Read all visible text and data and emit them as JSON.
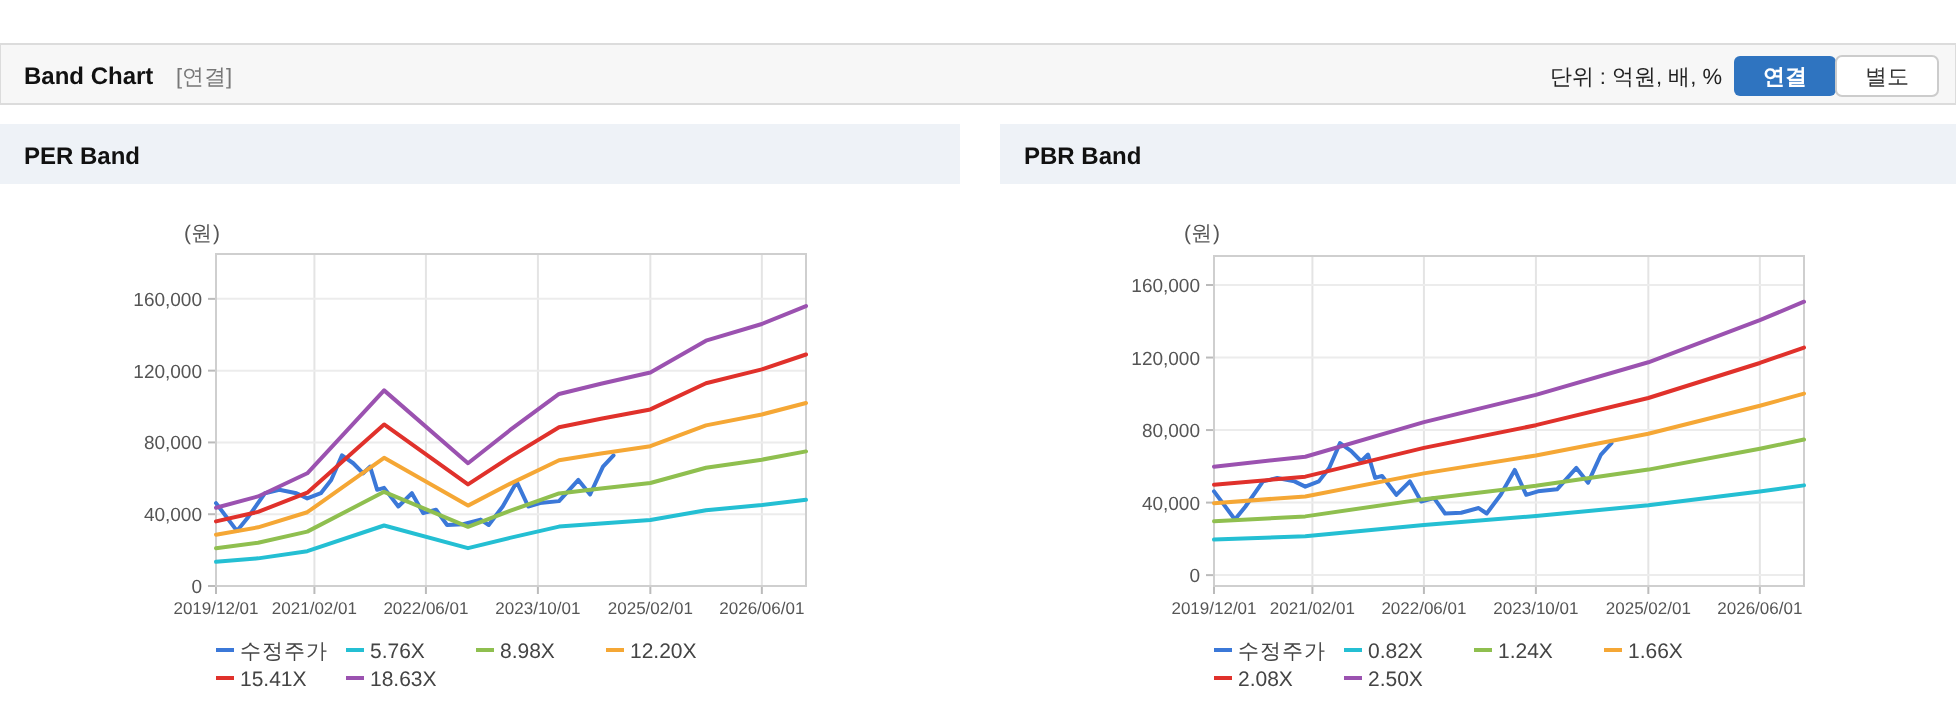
{
  "chart_data": [
    {
      "type": "other",
      "title": "Band Chart",
      "subtitle": "[연결]",
      "annotations": [
        "단위 : 억원, 배, %",
        "연결",
        "별도"
      ]
    },
    {
      "type": "line",
      "title": "PER Band",
      "ylabel": "(원)",
      "grid": true,
      "legend": "bottom",
      "marker": "none",
      "line_style": "solid",
      "xlim": [
        "2019-12-01",
        "2026-12-10"
      ],
      "ylim": [
        0,
        185000
      ],
      "xticks": [
        {
          "value": "2019-12-01",
          "label": "2019/12/01"
        },
        {
          "value": "2021-02-01",
          "label": "2021/02/01"
        },
        {
          "value": "2022-06-01",
          "label": "2022/06/01"
        },
        {
          "value": "2023-10-01",
          "label": "2023/10/01"
        },
        {
          "value": "2025-02-01",
          "label": "2025/02/01"
        },
        {
          "value": "2026-06-01",
          "label": "2026/06/01"
        }
      ],
      "yticks": [
        {
          "value": 0,
          "label": "0"
        },
        {
          "value": 40000,
          "label": "40,000"
        },
        {
          "value": 80000,
          "label": "80,000"
        },
        {
          "value": 120000,
          "label": "120,000"
        },
        {
          "value": 160000,
          "label": "160,000"
        }
      ],
      "series": [
        {
          "name": "수정주가",
          "color": "#3b78d8",
          "x": [
            "2019-12",
            "2020-03",
            "2020-04-15",
            "2020-07",
            "2020-09",
            "2020-11-15",
            "2021-01",
            "2021-03",
            "2021-04-15",
            "2021-06",
            "2021-07-20",
            "2021-09",
            "2021-10",
            "2021-11",
            "2021-12",
            "2022-02",
            "2022-04",
            "2022-05-20",
            "2022-07-15",
            "2022-09",
            "2022-11-10",
            "2023-01-25",
            "2023-03",
            "2023-05",
            "2023-07",
            "2023-08-20",
            "2023-10-10",
            "2024-01",
            "2024-03-25",
            "2024-05-15",
            "2024-07-10",
            "2024-08-25"
          ],
          "values": [
            46200,
            30700,
            37700,
            51700,
            53600,
            51700,
            48800,
            51700,
            59100,
            72800,
            68400,
            62800,
            66500,
            53600,
            54700,
            44300,
            51700,
            40600,
            42500,
            34000,
            34400,
            37000,
            34000,
            44300,
            58000,
            44300,
            46200,
            47300,
            59100,
            51000,
            66500,
            72800
          ]
        },
        {
          "name": "5.76X",
          "color": "#24bfd3",
          "x": [
            "2019-12",
            "2020-06",
            "2021-01",
            "2021-12",
            "2022-12",
            "2023-06",
            "2024-01",
            "2024-07",
            "2025-02",
            "2025-10",
            "2026-06",
            "2026-12-10"
          ],
          "values": [
            13500,
            15400,
            19400,
            33700,
            21100,
            26800,
            33100,
            34800,
            36800,
            42200,
            45100,
            48000
          ]
        },
        {
          "name": "8.98X",
          "color": "#8fbf4f",
          "x": [
            "2019-12",
            "2020-06",
            "2021-01",
            "2021-12",
            "2022-12",
            "2023-06",
            "2024-01",
            "2024-07",
            "2025-02",
            "2025-10",
            "2026-06",
            "2026-12-10"
          ],
          "values": [
            21000,
            24100,
            30300,
            52500,
            33000,
            41800,
            51600,
            54300,
            57400,
            65900,
            70400,
            75000
          ]
        },
        {
          "name": "12.20X",
          "color": "#f5a735",
          "x": [
            "2019-12",
            "2020-06",
            "2021-01",
            "2021-12",
            "2022-12",
            "2023-06",
            "2024-01",
            "2024-07",
            "2025-02",
            "2025-10",
            "2026-06",
            "2026-12-10"
          ],
          "values": [
            28600,
            32700,
            41100,
            71400,
            44800,
            56900,
            70100,
            73800,
            77900,
            89500,
            95600,
            102000
          ]
        },
        {
          "name": "15.41X",
          "color": "#e0312b",
          "x": [
            "2019-12",
            "2020-06",
            "2021-01",
            "2021-12",
            "2022-12",
            "2023-06",
            "2024-01",
            "2024-07",
            "2025-02",
            "2025-10",
            "2026-06",
            "2026-12-10"
          ],
          "values": [
            36000,
            41300,
            52000,
            90000,
            56600,
            71800,
            88500,
            93200,
            98400,
            113000,
            120700,
            129000
          ]
        },
        {
          "name": "18.63X",
          "color": "#9b52b0",
          "x": [
            "2019-12",
            "2020-06",
            "2021-01",
            "2021-12",
            "2022-12",
            "2023-06",
            "2024-01",
            "2024-07",
            "2025-02",
            "2025-10",
            "2026-06",
            "2026-12-10"
          ],
          "values": [
            43600,
            49900,
            62800,
            109000,
            68400,
            86800,
            107000,
            112700,
            119000,
            136700,
            146000,
            156000
          ]
        }
      ]
    },
    {
      "type": "line",
      "title": "PBR Band",
      "ylabel": "(원)",
      "grid": true,
      "legend": "bottom",
      "marker": "none",
      "line_style": "solid",
      "xlim": [
        "2019-12-01",
        "2026-12-10"
      ],
      "ylim": [
        -6000,
        176000
      ],
      "xticks": [
        {
          "value": "2019-12-01",
          "label": "2019/12/01"
        },
        {
          "value": "2021-02-01",
          "label": "2021/02/01"
        },
        {
          "value": "2022-06-01",
          "label": "2022/06/01"
        },
        {
          "value": "2023-10-01",
          "label": "2023/10/01"
        },
        {
          "value": "2025-02-01",
          "label": "2025/02/01"
        },
        {
          "value": "2026-06-01",
          "label": "2026/06/01"
        }
      ],
      "yticks": [
        {
          "value": 0,
          "label": "0"
        },
        {
          "value": 40000,
          "label": "40,000"
        },
        {
          "value": 80000,
          "label": "80,000"
        },
        {
          "value": 120000,
          "label": "120,000"
        },
        {
          "value": 160000,
          "label": "160,000"
        }
      ],
      "series": [
        {
          "name": "수정주가",
          "color": "#3b78d8",
          "x": [
            "2019-12",
            "2020-03",
            "2020-04-15",
            "2020-07",
            "2020-09",
            "2020-11-15",
            "2021-01",
            "2021-03",
            "2021-04-15",
            "2021-06",
            "2021-07-20",
            "2021-09",
            "2021-10",
            "2021-11",
            "2021-12",
            "2022-02",
            "2022-04",
            "2022-05-20",
            "2022-07-15",
            "2022-09",
            "2022-11-10",
            "2023-01-25",
            "2023-03",
            "2023-05",
            "2023-07",
            "2023-08-20",
            "2023-10-10",
            "2024-01",
            "2024-03-25",
            "2024-05-15",
            "2024-07-10",
            "2024-08-25"
          ],
          "values": [
            46200,
            30700,
            37700,
            51700,
            53600,
            51700,
            48800,
            51700,
            59100,
            72800,
            68400,
            62800,
            66500,
            53600,
            54700,
            44300,
            51700,
            40600,
            42500,
            34000,
            34400,
            37000,
            34000,
            44300,
            58000,
            44300,
            46200,
            47300,
            59100,
            51000,
            66500,
            72800
          ]
        },
        {
          "name": "0.82X",
          "color": "#24bfd3",
          "x": [
            "2019-12",
            "2021-01",
            "2022-06",
            "2023-10",
            "2025-02",
            "2026-06",
            "2026-12-10"
          ],
          "values": [
            19600,
            21400,
            27700,
            32600,
            38500,
            46100,
            49500
          ]
        },
        {
          "name": "1.24X",
          "color": "#8fbf4f",
          "x": [
            "2019-12",
            "2021-01",
            "2022-06",
            "2023-10",
            "2025-02",
            "2026-06",
            "2026-12-10"
          ],
          "values": [
            29700,
            32400,
            41900,
            49300,
            58200,
            69700,
            74800
          ]
        },
        {
          "name": "1.66X",
          "color": "#f5a735",
          "x": [
            "2019-12",
            "2021-01",
            "2022-06",
            "2023-10",
            "2025-02",
            "2026-06",
            "2026-12-10"
          ],
          "values": [
            39700,
            43400,
            56100,
            66000,
            78000,
            93400,
            100100
          ]
        },
        {
          "name": "2.08X",
          "color": "#e0312b",
          "x": [
            "2019-12",
            "2021-01",
            "2022-06",
            "2023-10",
            "2025-02",
            "2026-06",
            "2026-12-10"
          ],
          "values": [
            49800,
            54300,
            70200,
            82700,
            97700,
            117000,
            125500
          ]
        },
        {
          "name": "2.50X",
          "color": "#9b52b0",
          "x": [
            "2019-12",
            "2021-01",
            "2022-06",
            "2023-10",
            "2025-02",
            "2026-06",
            "2026-12-10"
          ],
          "values": [
            59800,
            65300,
            84400,
            99400,
            117400,
            140600,
            150800
          ]
        }
      ]
    }
  ]
}
